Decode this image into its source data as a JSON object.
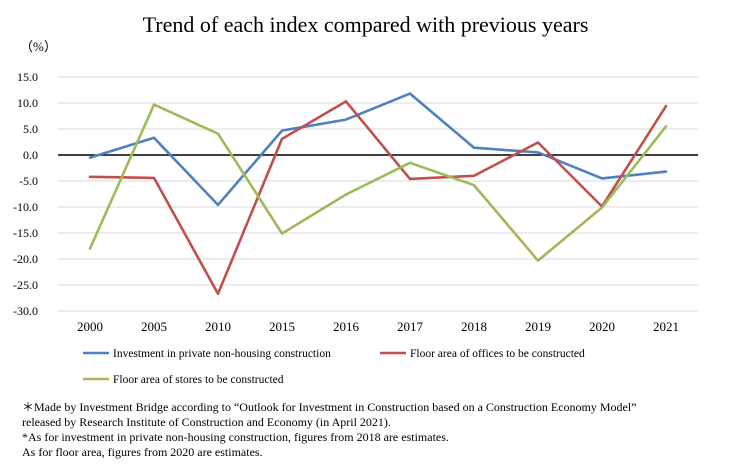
{
  "title": "Trend of each index compared with previous years",
  "unit": "（%）",
  "chart_data": {
    "type": "line",
    "title": "Trend of each index compared with previous years",
    "ylabel": "（%）",
    "xlabel": "",
    "categories": [
      "2000",
      "2005",
      "2010",
      "2015",
      "2016",
      "2017",
      "2018",
      "2019",
      "2020",
      "2021"
    ],
    "ylim": [
      -30,
      15
    ],
    "yticks": [
      "15.0",
      "10.0",
      "5.0",
      "0.0",
      "-5.0",
      "-10.0",
      "-15.0",
      "-20.0",
      "-25.0",
      "-30.0"
    ],
    "grid": true,
    "legend_position": "bottom",
    "series": [
      {
        "name": "Investment in private non-housing construction",
        "color": "#4F81BD",
        "values": [
          -0.5,
          3.3,
          -9.6,
          4.7,
          6.8,
          11.8,
          1.4,
          0.5,
          -4.5,
          -3.2
        ]
      },
      {
        "name": "Floor area of offices to be constructed",
        "color": "#C0504D",
        "values": [
          -4.2,
          -4.4,
          -26.7,
          3.1,
          10.3,
          -4.6,
          -4.0,
          2.4,
          -9.9,
          9.4
        ]
      },
      {
        "name": "Floor area of stores to be constructed",
        "color": "#9BBB59",
        "values": [
          -18.0,
          9.7,
          4.1,
          -15.1,
          -7.6,
          -1.5,
          -5.8,
          -20.3,
          -10.1,
          5.5
        ]
      }
    ]
  },
  "notes": [
    "＊Made by Investment Bridge according to “Outlook for Investment in Construction based on a Construction Economy Model”",
    "released by Research Institute of Construction and Economy (in April 2021).",
    "*As for investment in private non-housing construction, figures from 2018 are estimates.",
    "As for floor area, figures from 2020 are estimates."
  ]
}
